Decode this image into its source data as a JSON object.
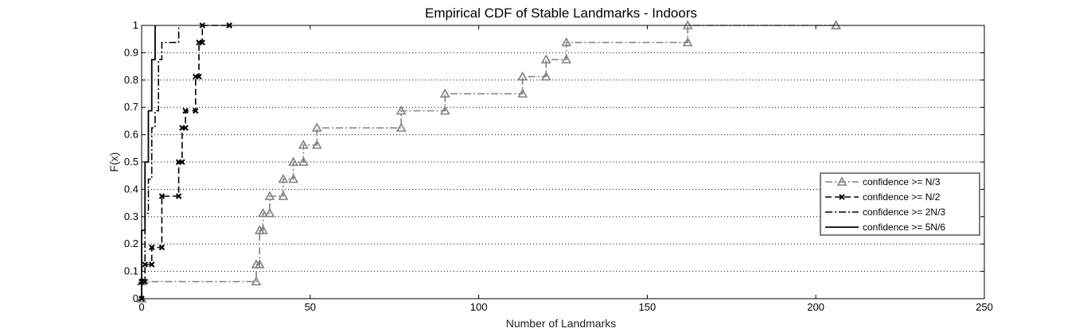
{
  "chart_data": {
    "type": "line",
    "title": "Empirical CDF of Stable Landmarks - Indoors",
    "xlabel": "Number of Landmarks",
    "ylabel": "F(x)",
    "xlim": [
      0,
      250
    ],
    "ylim": [
      0,
      1
    ],
    "xticks": [
      0,
      50,
      100,
      150,
      200,
      250
    ],
    "yticks": [
      0,
      0.1,
      0.2,
      0.3,
      0.4,
      0.5,
      0.6,
      0.7,
      0.8,
      0.9,
      1
    ],
    "ytick_labels": [
      "0",
      "0.1",
      "0.2",
      "0.3",
      "0.4",
      "0.5",
      "0.6",
      "0.7",
      "0.8",
      "0.9",
      "1"
    ],
    "grid": "horizontal-dotted",
    "legend_position": "right",
    "step_plot": true,
    "series": [
      {
        "name": "confidence >= N/3",
        "color": "#808080",
        "line_style": "dash-dot",
        "marker": "triangle",
        "x": [
          0,
          34,
          35,
          36,
          38,
          42,
          45,
          48,
          52,
          77,
          90,
          113,
          120,
          126,
          162,
          206
        ],
        "y": [
          0.0625,
          0.125,
          0.25,
          0.3125,
          0.375,
          0.4375,
          0.5,
          0.5625,
          0.625,
          0.6875,
          0.75,
          0.8125,
          0.875,
          0.9375,
          1.0,
          1.0
        ]
      },
      {
        "name": "confidence >= N/2",
        "color": "#000000",
        "line_style": "dashed",
        "marker": "x",
        "x": [
          0,
          1,
          3,
          6,
          11,
          12,
          13,
          16,
          17,
          18,
          26
        ],
        "y": [
          0.0625,
          0.125,
          0.1875,
          0.375,
          0.5,
          0.625,
          0.6875,
          0.8125,
          0.9375,
          1.0,
          1.0
        ]
      },
      {
        "name": "confidence >= 2N/3",
        "color": "#000000",
        "line_style": "dash-dot",
        "marker": "none",
        "x": [
          0,
          1,
          2,
          3,
          4,
          5,
          6,
          11
        ],
        "y": [
          0.125,
          0.3125,
          0.4375,
          0.625,
          0.6875,
          0.875,
          0.9375,
          1.0
        ]
      },
      {
        "name": "confidence >= 5N/6",
        "color": "#000000",
        "line_style": "solid",
        "marker": "none",
        "x": [
          0,
          1,
          2,
          3,
          4
        ],
        "y": [
          0.25,
          0.5,
          0.6875,
          0.875,
          1.0
        ]
      }
    ]
  }
}
